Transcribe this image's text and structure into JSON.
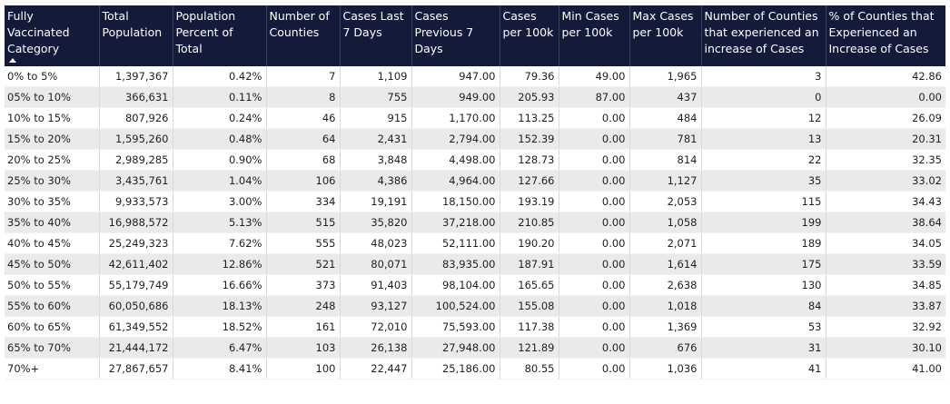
{
  "columns": [
    {
      "label": "Fully Vaccinated Category"
    },
    {
      "label": "Total Population"
    },
    {
      "label": "Population Percent of Total"
    },
    {
      "label": "Number of Counties"
    },
    {
      "label": "Cases Last 7 Days"
    },
    {
      "label": "Cases Previous 7 Days"
    },
    {
      "label": "Cases per 100k"
    },
    {
      "label": "Min Cases per 100k"
    },
    {
      "label": "Max Cases per 100k"
    },
    {
      "label": "Number of Counties that experienced an increase of Cases"
    },
    {
      "label": "% of Counties that Experienced an Increase of Cases"
    }
  ],
  "sort": {
    "column": 0,
    "direction": "ascending",
    "icon": "sort-up-icon"
  },
  "rows": [
    [
      "0% to 5%",
      "1,397,367",
      "0.42%",
      "7",
      "1,109",
      "947.00",
      "79.36",
      "49.00",
      "1,965",
      "3",
      "42.86"
    ],
    [
      "05% to 10%",
      "366,631",
      "0.11%",
      "8",
      "755",
      "949.00",
      "205.93",
      "87.00",
      "437",
      "0",
      "0.00"
    ],
    [
      "10% to 15%",
      "807,926",
      "0.24%",
      "46",
      "915",
      "1,170.00",
      "113.25",
      "0.00",
      "484",
      "12",
      "26.09"
    ],
    [
      "15% to 20%",
      "1,595,260",
      "0.48%",
      "64",
      "2,431",
      "2,794.00",
      "152.39",
      "0.00",
      "781",
      "13",
      "20.31"
    ],
    [
      "20% to 25%",
      "2,989,285",
      "0.90%",
      "68",
      "3,848",
      "4,498.00",
      "128.73",
      "0.00",
      "814",
      "22",
      "32.35"
    ],
    [
      "25% to 30%",
      "3,435,761",
      "1.04%",
      "106",
      "4,386",
      "4,964.00",
      "127.66",
      "0.00",
      "1,127",
      "35",
      "33.02"
    ],
    [
      "30% to 35%",
      "9,933,573",
      "3.00%",
      "334",
      "19,191",
      "18,150.00",
      "193.19",
      "0.00",
      "2,053",
      "115",
      "34.43"
    ],
    [
      "35% to 40%",
      "16,988,572",
      "5.13%",
      "515",
      "35,820",
      "37,218.00",
      "210.85",
      "0.00",
      "1,058",
      "199",
      "38.64"
    ],
    [
      "40% to 45%",
      "25,249,323",
      "7.62%",
      "555",
      "48,023",
      "52,111.00",
      "190.20",
      "0.00",
      "2,071",
      "189",
      "34.05"
    ],
    [
      "45% to 50%",
      "42,611,402",
      "12.86%",
      "521",
      "80,071",
      "83,935.00",
      "187.91",
      "0.00",
      "1,614",
      "175",
      "33.59"
    ],
    [
      "50% to 55%",
      "55,179,749",
      "16.66%",
      "373",
      "91,403",
      "98,104.00",
      "165.65",
      "0.00",
      "2,638",
      "130",
      "34.85"
    ],
    [
      "55% to 60%",
      "60,050,686",
      "18.13%",
      "248",
      "93,127",
      "100,524.00",
      "155.08",
      "0.00",
      "1,018",
      "84",
      "33.87"
    ],
    [
      "60% to 65%",
      "61,349,552",
      "18.52%",
      "161",
      "72,010",
      "75,593.00",
      "117.38",
      "0.00",
      "1,369",
      "53",
      "32.92"
    ],
    [
      "65% to 70%",
      "21,444,172",
      "6.47%",
      "103",
      "26,138",
      "27,948.00",
      "121.89",
      "0.00",
      "676",
      "31",
      "30.10"
    ],
    [
      "70%+",
      "27,867,657",
      "8.41%",
      "100",
      "22,447",
      "25,186.00",
      "80.55",
      "0.00",
      "1,036",
      "41",
      "41.00"
    ]
  ]
}
